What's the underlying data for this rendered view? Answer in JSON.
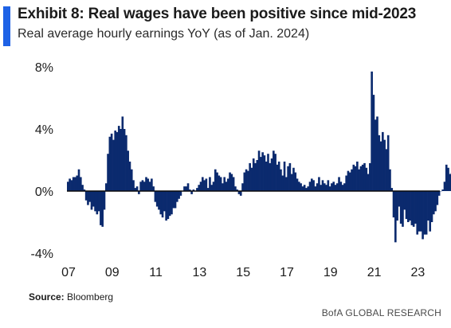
{
  "header": {
    "title": "Exhibit 8: Real wages have been positive since mid-2023",
    "subtitle": "Real average hourly earnings YoY (as of Jan. 2024)",
    "accent_color": "#1e62e6"
  },
  "footer": {
    "source_label": "Source:",
    "source_value": "Bloomberg",
    "brand": "BofA GLOBAL RESEARCH"
  },
  "chart_data": {
    "type": "bar",
    "title": "Exhibit 8: Real wages have been positive since mid-2023",
    "subtitle": "Real average hourly earnings YoY (as of Jan. 2024)",
    "xlabel": "",
    "ylabel": "",
    "color": "#0b2a6e",
    "ylim": [
      -4,
      8
    ],
    "yticks": [
      -4,
      0,
      4,
      8
    ],
    "ytick_labels": [
      "-4%",
      "0%",
      "4%",
      "8%"
    ],
    "xlim": [
      2007.0,
      2024.08
    ],
    "xticks": [
      2007,
      2009,
      2011,
      2013,
      2015,
      2017,
      2019,
      2021,
      2023
    ],
    "xtick_labels": [
      "07",
      "09",
      "11",
      "13",
      "15",
      "17",
      "19",
      "21",
      "23"
    ],
    "grid": false,
    "legend": "none",
    "series": [
      {
        "frequency": "monthly",
        "start": "2007-01",
        "values": [
          0.6,
          0.8,
          0.7,
          0.9,
          0.9,
          1.0,
          1.4,
          0.9,
          0.4,
          0.1,
          -0.6,
          -0.9,
          -0.7,
          -1.2,
          -1.0,
          -1.3,
          -1.5,
          -1.3,
          -2.2,
          -2.3,
          -1.2,
          0.5,
          2.4,
          3.5,
          3.7,
          3.3,
          3.9,
          3.8,
          4.2,
          4.0,
          4.8,
          4.0,
          3.6,
          2.6,
          1.9,
          1.4,
          0.7,
          0.2,
          0.3,
          -0.2,
          0.6,
          0.7,
          0.6,
          0.9,
          0.8,
          0.6,
          0.8,
          0.3,
          -0.7,
          -1.0,
          -1.2,
          -1.5,
          -1.7,
          -1.3,
          -1.9,
          -1.8,
          -1.6,
          -1.5,
          -1.1,
          -1.1,
          -0.7,
          -0.5,
          -0.3,
          0.0,
          0.3,
          0.3,
          0.5,
          0.1,
          -0.2,
          0.1,
          0.0,
          0.2,
          0.4,
          0.6,
          0.9,
          0.7,
          0.8,
          0.2,
          0.9,
          0.4,
          0.6,
          1.4,
          1.2,
          1.0,
          0.9,
          0.5,
          0.9,
          0.6,
          0.8,
          1.2,
          1.1,
          0.9,
          0.3,
          0.1,
          -0.2,
          -0.3,
          0.5,
          1.2,
          1.4,
          1.3,
          1.8,
          1.5,
          2.1,
          1.8,
          2.0,
          2.6,
          2.2,
          2.5,
          2.3,
          1.9,
          2.4,
          1.8,
          2.1,
          2.6,
          2.4,
          1.7,
          1.9,
          1.4,
          1.0,
          1.9,
          0.9,
          1.6,
          1.8,
          1.1,
          1.5,
          1.2,
          0.8,
          0.6,
          0.5,
          0.3,
          0.4,
          0.2,
          0.3,
          0.6,
          0.8,
          0.7,
          0.3,
          0.5,
          0.9,
          0.4,
          0.7,
          0.5,
          0.4,
          0.7,
          0.3,
          0.5,
          0.6,
          0.4,
          0.5,
          0.9,
          0.6,
          0.4,
          0.5,
          1.0,
          1.3,
          1.2,
          1.4,
          1.7,
          1.6,
          1.9,
          1.4,
          1.6,
          1.7,
          1.8,
          1.5,
          1.1,
          1.8,
          7.7,
          6.2,
          4.6,
          4.8,
          3.6,
          3.2,
          3.8,
          3.3,
          2.7,
          3.6,
          1.4,
          0.2,
          -1.7,
          -3.3,
          -1.9,
          -1.0,
          -2.1,
          -2.3,
          -1.2,
          -1.8,
          -2.0,
          -1.9,
          -2.2,
          -2.3,
          -2.1,
          -2.8,
          -2.6,
          -2.6,
          -3.1,
          -2.8,
          -2.8,
          -1.9,
          -2.6,
          -2.0,
          -1.5,
          -1.3,
          -0.9,
          -0.3,
          0.0,
          0.1,
          0.6,
          1.7,
          1.5,
          1.1,
          1.2,
          1.3,
          0.8,
          0.9,
          1.4
        ]
      }
    ]
  }
}
